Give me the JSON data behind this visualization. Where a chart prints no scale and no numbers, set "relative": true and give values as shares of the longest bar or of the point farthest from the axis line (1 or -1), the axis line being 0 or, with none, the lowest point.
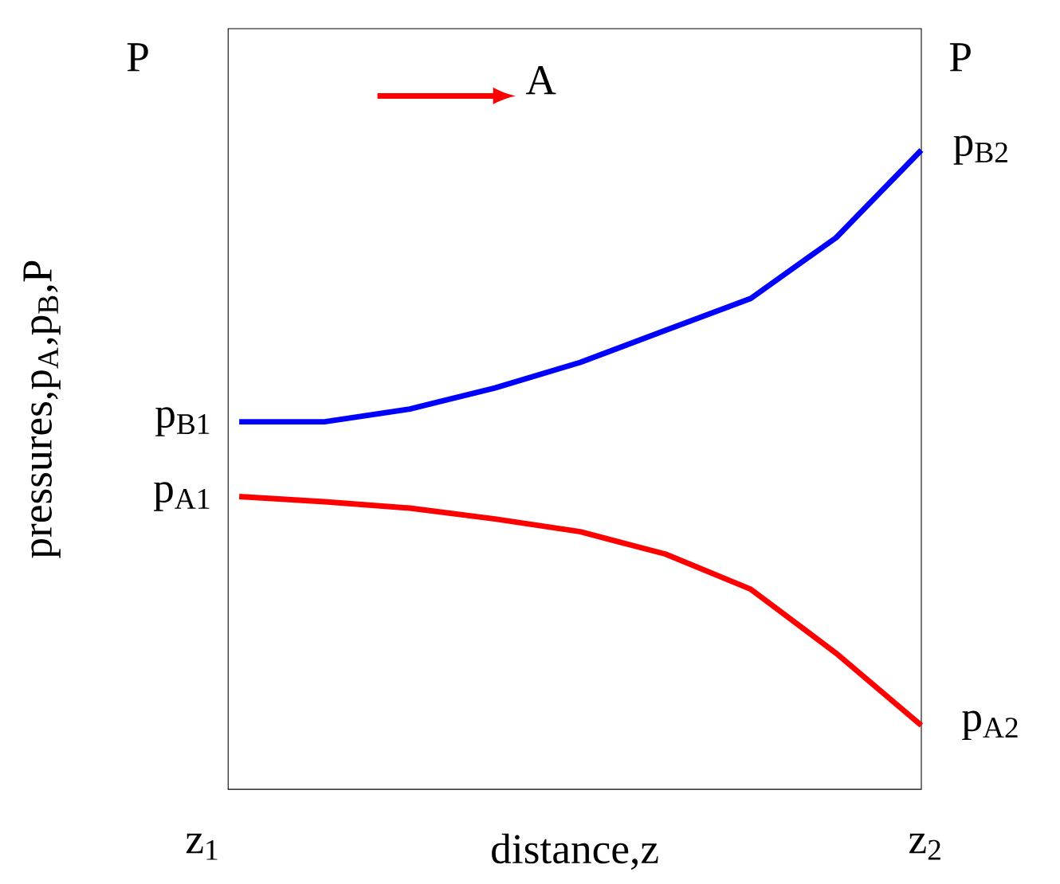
{
  "chart_data": {
    "type": "line",
    "relative": true,
    "ylabel": "pressures,p$_{A}$,p$_{B}$,P",
    "xlabel": "distance,z",
    "categories": [
      null,
      null,
      null,
      null,
      null,
      null,
      null,
      null,
      null
    ],
    "series": [
      {
        "color": "#0000ff",
        "values": [
          0.575,
          0.575,
          0.595,
          0.628,
          0.668,
          0.718,
          0.768,
          0.863,
          1
        ]
      },
      {
        "color": "#ff0000",
        "values": [
          0.458,
          0.45,
          0.44,
          0.423,
          0.403,
          0.368,
          0.313,
          0.213,
          0.1
        ]
      }
    ],
    "annotations": [
      "P",
      "P",
      "A",
      "z$_{1}$",
      "z$_{2}$",
      "p$_{B1}$",
      "p$_{A1}$",
      "p$_{B2}$",
      "p$_{A2}$"
    ]
  }
}
